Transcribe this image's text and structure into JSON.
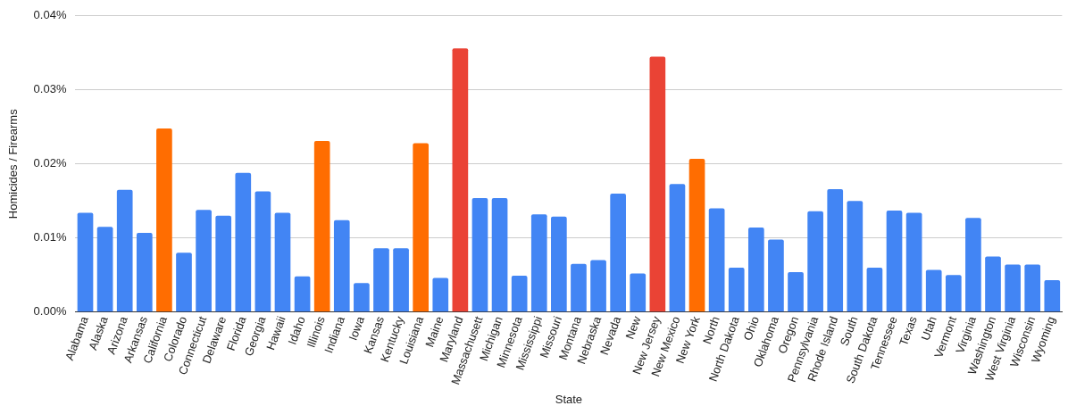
{
  "chart_data": {
    "type": "bar",
    "xlabel": "State",
    "ylabel": "Homicides / Firearms",
    "categories": [
      "Alabama",
      "Alaska",
      "Arizona",
      "Arkansas",
      "California",
      "Colorado",
      "Connecticut",
      "Delaware",
      "Florida",
      "Georgia",
      "Hawaii",
      "Idaho",
      "Illinois",
      "Indiana",
      "Iowa",
      "Kansas",
      "Kentucky",
      "Louisiana",
      "Maine",
      "Maryland",
      "Massachusett",
      "Michigan",
      "Minnesota",
      "Mississippi",
      "Missouri",
      "Montana",
      "Nebraska",
      "Nevada",
      "New",
      "New Jersey",
      "New Mexico",
      "New York",
      "North",
      "North Dakota",
      "Ohio",
      "Oklahoma",
      "Oregon",
      "Pennsylvania",
      "Rhode Island",
      "South",
      "South Dakota",
      "Tennessee",
      "Texas",
      "Utah",
      "Vermont",
      "Virginia",
      "Washington",
      "West Virginia",
      "Wisconsin",
      "Wyoming"
    ],
    "values": [
      0.0134,
      0.0115,
      0.0165,
      0.0107,
      0.0248,
      0.008,
      0.0138,
      0.013,
      0.0188,
      0.0163,
      0.0134,
      0.0048,
      0.0231,
      0.0124,
      0.0039,
      0.0086,
      0.0086,
      0.0228,
      0.0046,
      0.0356,
      0.0154,
      0.0154,
      0.0049,
      0.0132,
      0.0129,
      0.0065,
      0.007,
      0.016,
      0.0052,
      0.0345,
      0.0173,
      0.0207,
      0.014,
      0.006,
      0.0114,
      0.0098,
      0.0054,
      0.0136,
      0.0166,
      0.015,
      0.006,
      0.0137,
      0.0134,
      0.0057,
      0.005,
      0.0127,
      0.0075,
      0.0064,
      0.0064,
      0.0043
    ],
    "colors": [
      "#4285f4",
      "#4285f4",
      "#4285f4",
      "#4285f4",
      "#ff6d01",
      "#4285f4",
      "#4285f4",
      "#4285f4",
      "#4285f4",
      "#4285f4",
      "#4285f4",
      "#4285f4",
      "#ff6d01",
      "#4285f4",
      "#4285f4",
      "#4285f4",
      "#4285f4",
      "#ff6d01",
      "#4285f4",
      "#ea4335",
      "#4285f4",
      "#4285f4",
      "#4285f4",
      "#4285f4",
      "#4285f4",
      "#4285f4",
      "#4285f4",
      "#4285f4",
      "#4285f4",
      "#ea4335",
      "#4285f4",
      "#ff6d01",
      "#4285f4",
      "#4285f4",
      "#4285f4",
      "#4285f4",
      "#4285f4",
      "#4285f4",
      "#4285f4",
      "#4285f4",
      "#4285f4",
      "#4285f4",
      "#4285f4",
      "#4285f4",
      "#4285f4",
      "#4285f4",
      "#4285f4",
      "#4285f4",
      "#4285f4",
      "#4285f4"
    ],
    "ylim": [
      0,
      0.04
    ],
    "yticks": [
      {
        "value": 0,
        "label": "0.00%"
      },
      {
        "value": 0.01,
        "label": "0.01%"
      },
      {
        "value": 0.02,
        "label": "0.02%"
      },
      {
        "value": 0.03,
        "label": "0.03%"
      },
      {
        "value": 0.04,
        "label": "0.04%"
      }
    ],
    "grid": "y",
    "legend": false
  }
}
